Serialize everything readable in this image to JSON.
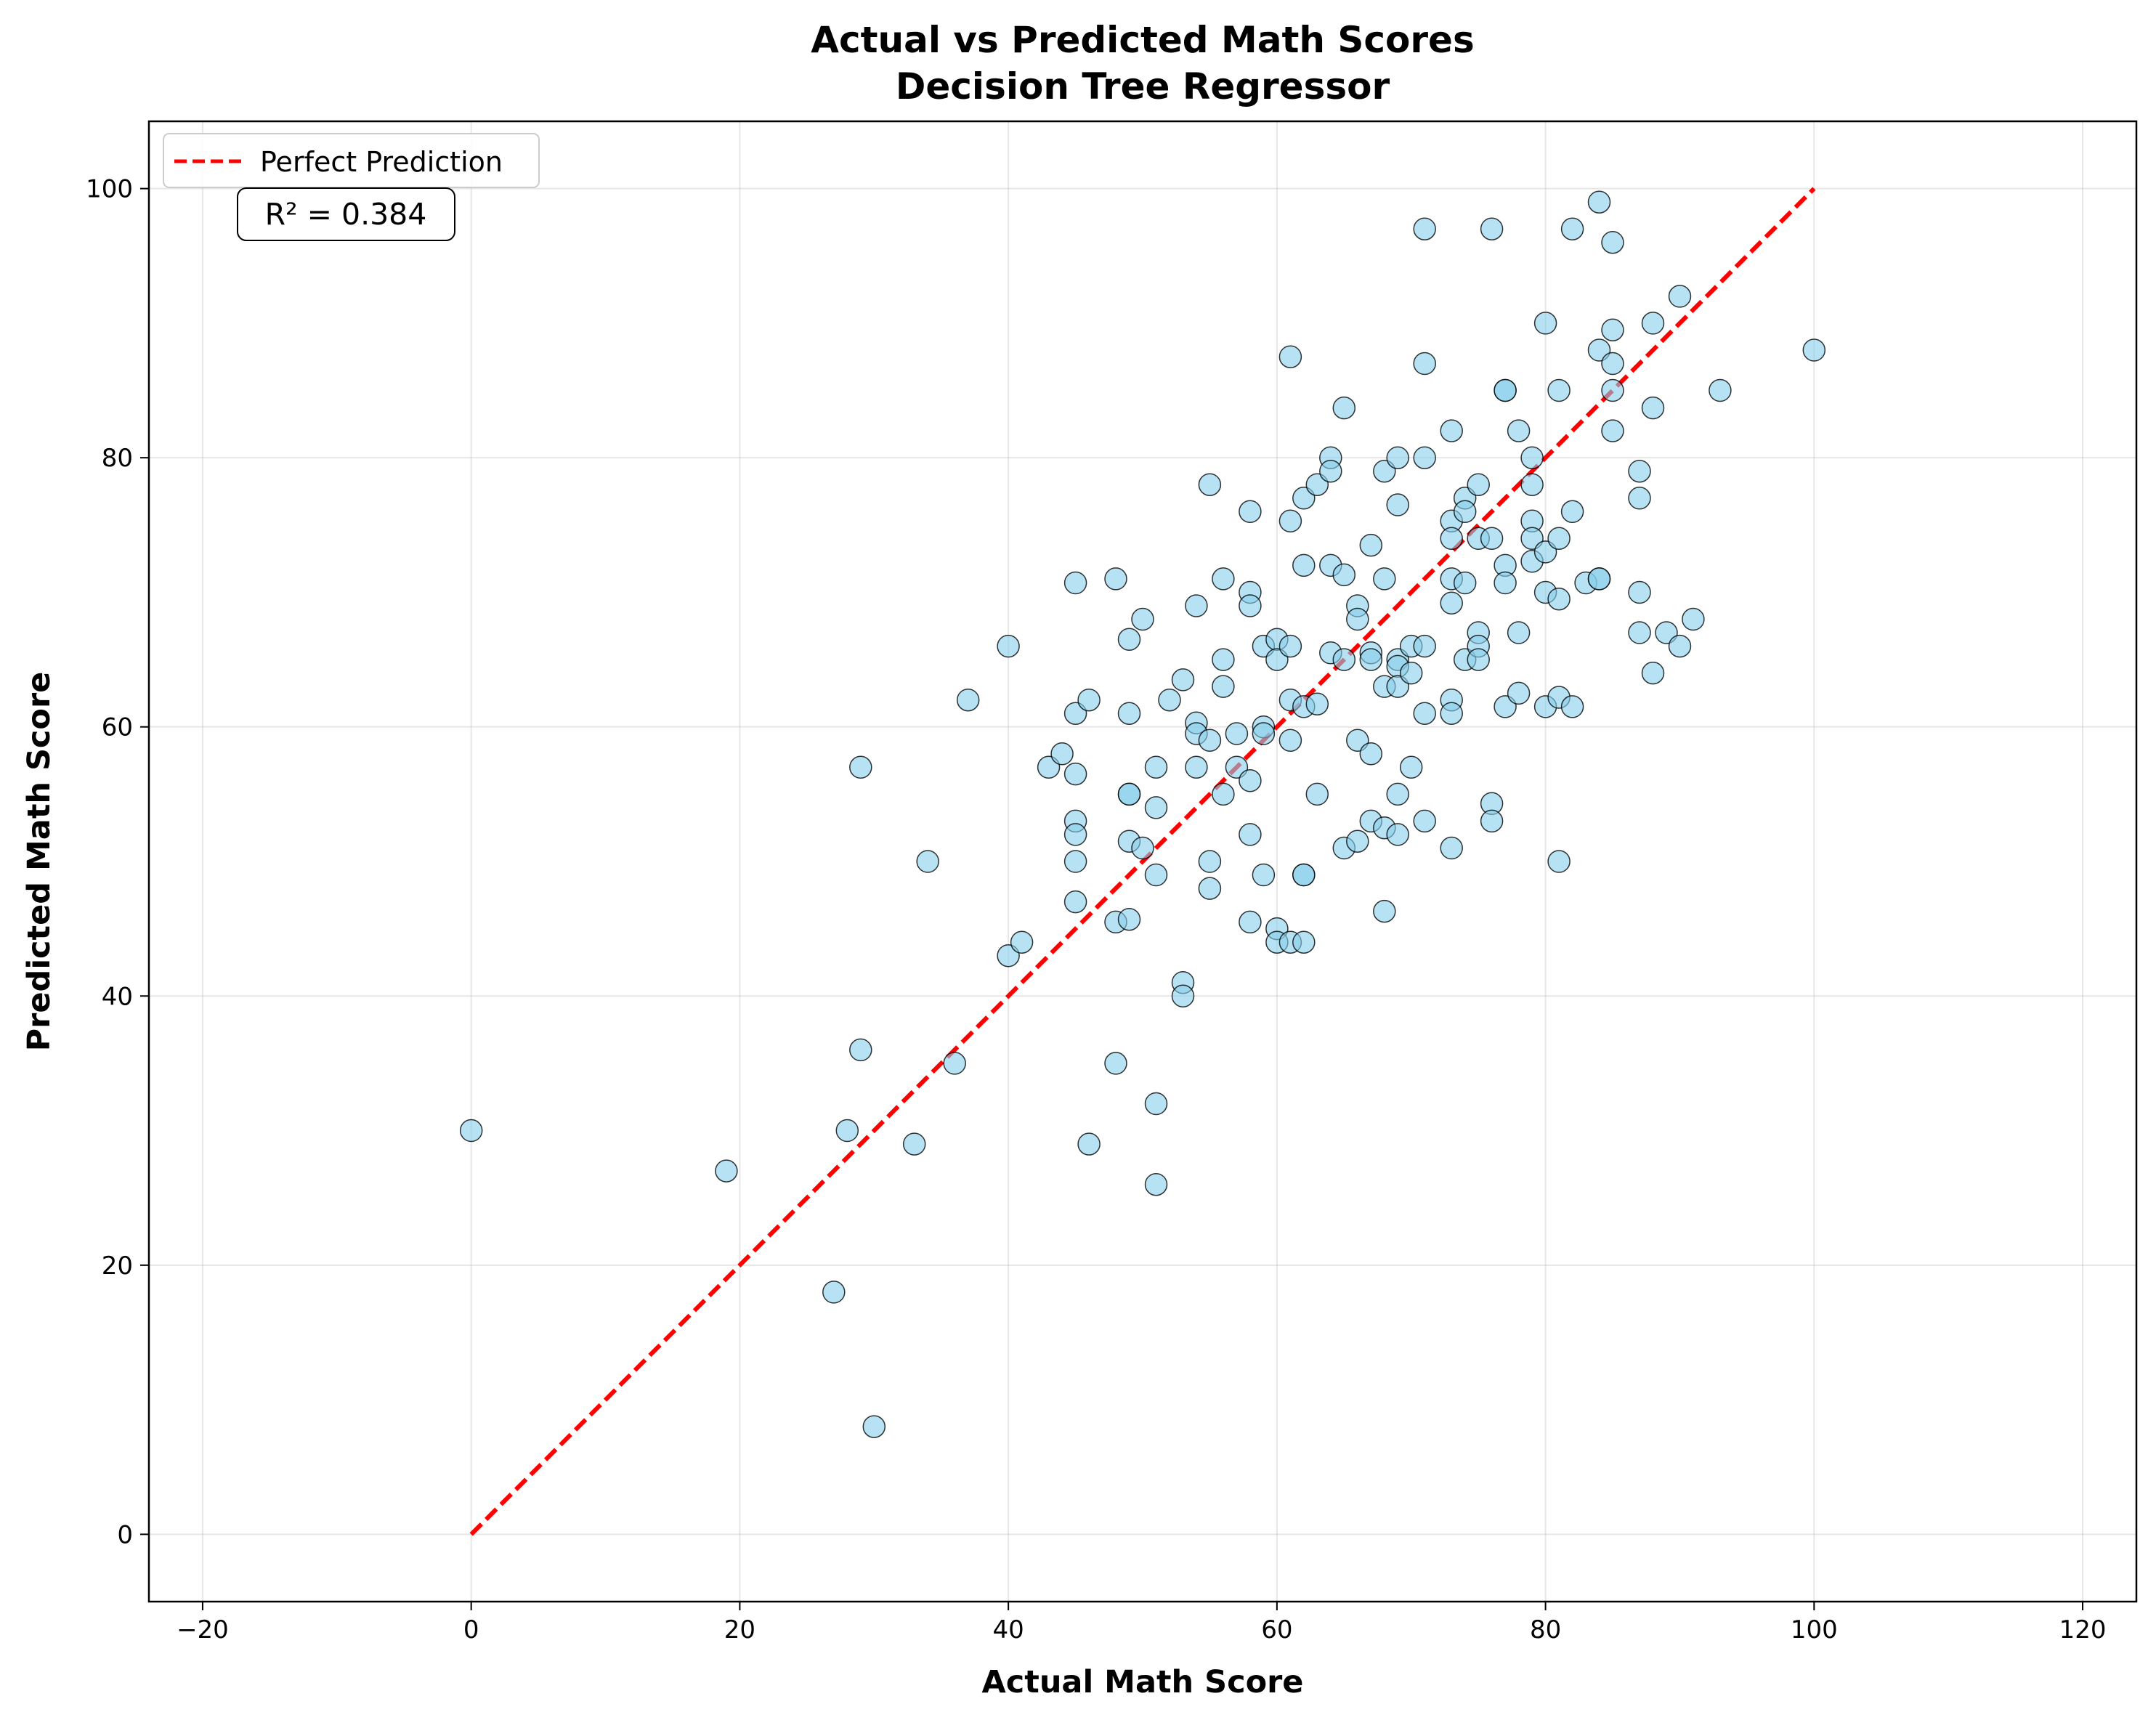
{
  "chart_data": {
    "type": "scatter",
    "title": "Actual vs Predicted Math Scores",
    "subtitle": "Decision Tree Regressor",
    "xlabel": "Actual Math Score",
    "ylabel": "Predicted Math Score",
    "xlim": [
      -24,
      124
    ],
    "ylim": [
      -5,
      105
    ],
    "xticks": [
      -20,
      0,
      20,
      40,
      60,
      80,
      100,
      120
    ],
    "yticks": [
      0,
      20,
      40,
      60,
      80,
      100
    ],
    "grid": true,
    "legend": {
      "placement": "top-left",
      "entries": [
        "Perfect Prediction"
      ]
    },
    "annotation": "R² = 0.384",
    "reference_line": {
      "name": "Perfect Prediction",
      "x": [
        0,
        100
      ],
      "y": [
        0,
        100
      ],
      "color": "#ff0000",
      "style": "dashed"
    },
    "point_color": "#87ceeb",
    "point_edge_color": "#000000",
    "points": [
      [
        0,
        30
      ],
      [
        19,
        27
      ],
      [
        27,
        18
      ],
      [
        28,
        30
      ],
      [
        29,
        57
      ],
      [
        29,
        36
      ],
      [
        30,
        8
      ],
      [
        33,
        29
      ],
      [
        34,
        50
      ],
      [
        36,
        35
      ],
      [
        37,
        62
      ],
      [
        40,
        66
      ],
      [
        40,
        43
      ],
      [
        41,
        44
      ],
      [
        43,
        57
      ],
      [
        44,
        58
      ],
      [
        45,
        70.7
      ],
      [
        45,
        61
      ],
      [
        45,
        56.5
      ],
      [
        45,
        53
      ],
      [
        45,
        52
      ],
      [
        45,
        50
      ],
      [
        45,
        47
      ],
      [
        46,
        62
      ],
      [
        46,
        29
      ],
      [
        48,
        71
      ],
      [
        48,
        45.5
      ],
      [
        48,
        35
      ],
      [
        49,
        66.5
      ],
      [
        49,
        61
      ],
      [
        49,
        55
      ],
      [
        49,
        55
      ],
      [
        49,
        51.5
      ],
      [
        49,
        45.7
      ],
      [
        50,
        68
      ],
      [
        50,
        51
      ],
      [
        51,
        57
      ],
      [
        51,
        54
      ],
      [
        51,
        49
      ],
      [
        51,
        32
      ],
      [
        51,
        26
      ],
      [
        52,
        62
      ],
      [
        53,
        63.5
      ],
      [
        53,
        41
      ],
      [
        53,
        40
      ],
      [
        54,
        69
      ],
      [
        54,
        60.3
      ],
      [
        54,
        59.5
      ],
      [
        54,
        57
      ],
      [
        55,
        78
      ],
      [
        55,
        59
      ],
      [
        55,
        50
      ],
      [
        55,
        48
      ],
      [
        56,
        71
      ],
      [
        56,
        65
      ],
      [
        56,
        63
      ],
      [
        56,
        55
      ],
      [
        57,
        59.5
      ],
      [
        57,
        57
      ],
      [
        58,
        76
      ],
      [
        58,
        70
      ],
      [
        58,
        69
      ],
      [
        58,
        56
      ],
      [
        58,
        52
      ],
      [
        58,
        45.5
      ],
      [
        59,
        66
      ],
      [
        59,
        60
      ],
      [
        59,
        59.5
      ],
      [
        59,
        49
      ],
      [
        60,
        66.5
      ],
      [
        60,
        65
      ],
      [
        60,
        45
      ],
      [
        60,
        44
      ],
      [
        61,
        87.5
      ],
      [
        61,
        75.3
      ],
      [
        61,
        66
      ],
      [
        61,
        62
      ],
      [
        61,
        59
      ],
      [
        61,
        44
      ],
      [
        62,
        77
      ],
      [
        62,
        72
      ],
      [
        62,
        61.5
      ],
      [
        62,
        49
      ],
      [
        62,
        49
      ],
      [
        62,
        44
      ],
      [
        63,
        78
      ],
      [
        63,
        61.7
      ],
      [
        63,
        55
      ],
      [
        64,
        80
      ],
      [
        64,
        79
      ],
      [
        64,
        72
      ],
      [
        64,
        65.5
      ],
      [
        65,
        83.7
      ],
      [
        65,
        71.3
      ],
      [
        65,
        65
      ],
      [
        65,
        51
      ],
      [
        66,
        69
      ],
      [
        66,
        68
      ],
      [
        66,
        59
      ],
      [
        66,
        51.5
      ],
      [
        67,
        73.5
      ],
      [
        67,
        65.5
      ],
      [
        67,
        65
      ],
      [
        67,
        58
      ],
      [
        67,
        53
      ],
      [
        68,
        79
      ],
      [
        68,
        71
      ],
      [
        68,
        63
      ],
      [
        68,
        52.5
      ],
      [
        68,
        46.3
      ],
      [
        69,
        80
      ],
      [
        69,
        76.5
      ],
      [
        69,
        65
      ],
      [
        69,
        64.5
      ],
      [
        69,
        63
      ],
      [
        69,
        55
      ],
      [
        69,
        52
      ],
      [
        70,
        66
      ],
      [
        70,
        64
      ],
      [
        70,
        57
      ],
      [
        71,
        97
      ],
      [
        71,
        87
      ],
      [
        71,
        80
      ],
      [
        71,
        66
      ],
      [
        71,
        61
      ],
      [
        71,
        53
      ],
      [
        73,
        82
      ],
      [
        73,
        75.3
      ],
      [
        73,
        74
      ],
      [
        73,
        71
      ],
      [
        73,
        69.2
      ],
      [
        73,
        62
      ],
      [
        73,
        61
      ],
      [
        73,
        51
      ],
      [
        74,
        77
      ],
      [
        74,
        76
      ],
      [
        74,
        70.7
      ],
      [
        74,
        65
      ],
      [
        75,
        78
      ],
      [
        75,
        74
      ],
      [
        75,
        67
      ],
      [
        75,
        66
      ],
      [
        75,
        65
      ],
      [
        76,
        97
      ],
      [
        76,
        74
      ],
      [
        76,
        54.3
      ],
      [
        76,
        53
      ],
      [
        77,
        85
      ],
      [
        77,
        85
      ],
      [
        77,
        72
      ],
      [
        77,
        70.7
      ],
      [
        77,
        61.5
      ],
      [
        78,
        82
      ],
      [
        78,
        67
      ],
      [
        78,
        62.5
      ],
      [
        79,
        80
      ],
      [
        79,
        78
      ],
      [
        79,
        75.3
      ],
      [
        79,
        74
      ],
      [
        79,
        72.3
      ],
      [
        80,
        90
      ],
      [
        80,
        73
      ],
      [
        80,
        70
      ],
      [
        80,
        61.5
      ],
      [
        81,
        85
      ],
      [
        81,
        74
      ],
      [
        81,
        69.5
      ],
      [
        81,
        62.2
      ],
      [
        81,
        50
      ],
      [
        82,
        97
      ],
      [
        82,
        76
      ],
      [
        82,
        61.5
      ],
      [
        83,
        70.7
      ],
      [
        84,
        99
      ],
      [
        84,
        88
      ],
      [
        84,
        71
      ],
      [
        84,
        71
      ],
      [
        85,
        96
      ],
      [
        85,
        89.5
      ],
      [
        85,
        87
      ],
      [
        85,
        85
      ],
      [
        85,
        82
      ],
      [
        87,
        79
      ],
      [
        87,
        77
      ],
      [
        87,
        70
      ],
      [
        87,
        67
      ],
      [
        88,
        90
      ],
      [
        88,
        83.7
      ],
      [
        88,
        64
      ],
      [
        89,
        67
      ],
      [
        90,
        92
      ],
      [
        90,
        66
      ],
      [
        91,
        68
      ],
      [
        93,
        85
      ],
      [
        100,
        88
      ]
    ]
  }
}
